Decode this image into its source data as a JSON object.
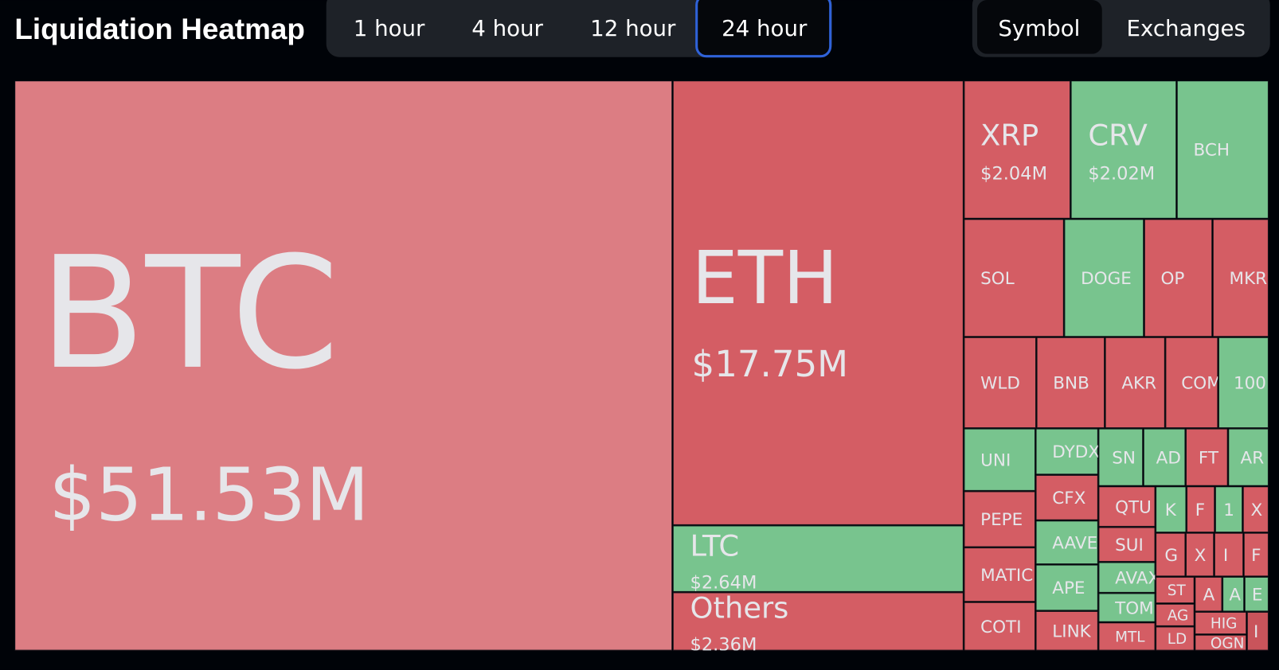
{
  "header": {
    "title": "Liquidation Heatmap",
    "tabs": [
      "1 hour",
      "4 hour",
      "12 hour",
      "24 hour"
    ],
    "views": [
      "Symbol",
      "Exchanges"
    ]
  },
  "tiles": [
    {
      "label": "BTC",
      "value": "$51.53M",
      "color": "#dc7d83"
    },
    {
      "label": "ETH",
      "value": "$17.75M",
      "color": "#d45d64"
    },
    {
      "label": "LTC",
      "value": "$2.64M",
      "color": "#78c48e"
    },
    {
      "label": "Others",
      "value": "$2.36M",
      "color": "#d45d64"
    },
    {
      "label": "XRP",
      "value": "$2.04M",
      "color": "#d45d64"
    },
    {
      "label": "CRV",
      "value": "$2.02M",
      "color": "#78c48e"
    },
    {
      "label": "BCH",
      "color": "#78c48e"
    },
    {
      "label": "SOL",
      "color": "#d45d64"
    },
    {
      "label": "DOGE",
      "color": "#78c48e"
    },
    {
      "label": "OP",
      "color": "#d45d64"
    },
    {
      "label": "MKR",
      "color": "#d45d64"
    },
    {
      "label": "WLD",
      "color": "#d45d64"
    },
    {
      "label": "BNB",
      "color": "#d45d64"
    },
    {
      "label": "AKR",
      "color": "#d45d64"
    },
    {
      "label": "COM",
      "color": "#d45d64"
    },
    {
      "label": "100",
      "color": "#78c48e"
    },
    {
      "label": "UNI",
      "color": "#78c48e"
    },
    {
      "label": "DYDX",
      "color": "#78c48e"
    },
    {
      "label": "SN",
      "color": "#78c48e"
    },
    {
      "label": "AD",
      "color": "#78c48e"
    },
    {
      "label": "FT",
      "color": "#d45d64"
    },
    {
      "label": "AR",
      "color": "#78c48e"
    },
    {
      "label": "CFX",
      "color": "#d45d64"
    },
    {
      "label": "PEPE",
      "color": "#d45d64"
    },
    {
      "label": "QTU",
      "color": "#d45d64"
    },
    {
      "label": "K",
      "color": "#78c48e"
    },
    {
      "label": "F",
      "color": "#d45d64"
    },
    {
      "label": "1",
      "color": "#78c48e"
    },
    {
      "label": "X",
      "color": "#d45d64"
    },
    {
      "label": "AAVE",
      "color": "#78c48e"
    },
    {
      "label": "SUI",
      "color": "#d45d64"
    },
    {
      "label": "MATIC",
      "color": "#d45d64"
    },
    {
      "label": "G",
      "color": "#d45d64"
    },
    {
      "label": "X",
      "color": "#d45d64"
    },
    {
      "label": "I",
      "color": "#d45d64"
    },
    {
      "label": "F",
      "color": "#d45d64"
    },
    {
      "label": "APE",
      "color": "#78c48e"
    },
    {
      "label": "AVAX",
      "color": "#78c48e"
    },
    {
      "label": "ST",
      "color": "#d45d64"
    },
    {
      "label": "A",
      "color": "#d45d64"
    },
    {
      "label": "A",
      "color": "#78c48e"
    },
    {
      "label": "E",
      "color": "#78c48e"
    },
    {
      "label": "TOM",
      "color": "#78c48e"
    },
    {
      "label": "AG",
      "color": "#d45d64"
    },
    {
      "label": "COTI",
      "color": "#d45d64"
    },
    {
      "label": "LINK",
      "color": "#d45d64"
    },
    {
      "label": "MTL",
      "color": "#d45d64"
    },
    {
      "label": "HIG",
      "color": "#d45d64"
    },
    {
      "label": "LD",
      "color": "#d45d64"
    },
    {
      "label": "OGN",
      "color": "#d45d64"
    },
    {
      "label": "I",
      "color": "#c9545b"
    }
  ]
}
